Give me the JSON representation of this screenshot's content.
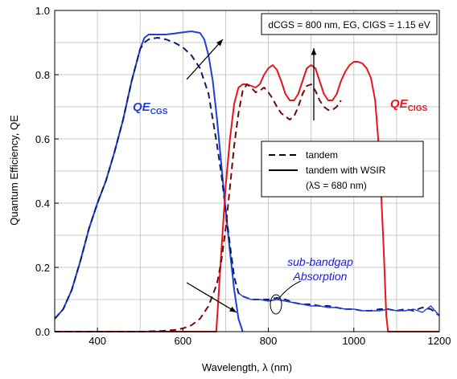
{
  "chart_data": {
    "type": "line",
    "xlabel": "Wavelength, λ (nm)",
    "ylabel": "Quantum Efficiency, QE",
    "xlim": [
      300,
      1200
    ],
    "ylim": [
      0,
      1.0
    ],
    "xticks": [
      400,
      600,
      800,
      1000,
      1200
    ],
    "yticks": [
      0.0,
      0.2,
      0.4,
      0.6,
      0.8,
      1.0
    ],
    "grid": true,
    "legend": {
      "placement": "center-right",
      "entries": [
        {
          "label": "tandem",
          "style": "dashed"
        },
        {
          "label": "tandem with WSIR",
          "style": "solid"
        },
        {
          "label": "(λS = 680 nm)",
          "style": "none"
        }
      ]
    },
    "info_box": "dCGS = 800 nm, EG, CIGS = 1.15 eV",
    "labels": {
      "qe_cgs_main": "QE",
      "qe_cgs_sub": "CGS",
      "qe_cigs_main": "QE",
      "qe_cigs_sub": "CIGS",
      "annotation_line1": "sub-bandgap",
      "annotation_line2": "Absorption"
    },
    "colors": {
      "cgs_solid": "#1f3fd6",
      "cgs_dashed": "#0a1f6e",
      "cigs_solid": "#e8141c",
      "cigs_dashed": "#6e0a0a"
    },
    "series": [
      {
        "name": "QE CGS tandem with WSIR",
        "style": "solid",
        "color": "cgs_solid",
        "x": [
          300,
          320,
          340,
          360,
          380,
          400,
          420,
          440,
          460,
          480,
          500,
          510,
          520,
          540,
          560,
          580,
          600,
          620,
          640,
          650,
          660,
          670,
          680,
          690,
          700,
          710,
          720,
          730,
          740
        ],
        "y": [
          0.04,
          0.07,
          0.13,
          0.22,
          0.32,
          0.4,
          0.47,
          0.56,
          0.66,
          0.78,
          0.88,
          0.915,
          0.925,
          0.925,
          0.925,
          0.928,
          0.932,
          0.935,
          0.93,
          0.91,
          0.86,
          0.78,
          0.66,
          0.52,
          0.38,
          0.25,
          0.13,
          0.04,
          0.0
        ]
      },
      {
        "name": "QE CGS tandem",
        "style": "dashed",
        "color": "cgs_dashed",
        "x": [
          300,
          320,
          340,
          360,
          380,
          400,
          420,
          440,
          460,
          480,
          500,
          510,
          520,
          540,
          560,
          580,
          600,
          620,
          640,
          660,
          670,
          680,
          690,
          700,
          710,
          720,
          730,
          740,
          760,
          780,
          800,
          820,
          840,
          860,
          880,
          900,
          920,
          940,
          960,
          980,
          1000,
          1020,
          1040,
          1060,
          1080,
          1100,
          1120,
          1140,
          1160,
          1180,
          1200
        ],
        "y": [
          0.04,
          0.07,
          0.13,
          0.22,
          0.32,
          0.4,
          0.47,
          0.56,
          0.66,
          0.78,
          0.88,
          0.9,
          0.91,
          0.915,
          0.91,
          0.9,
          0.885,
          0.86,
          0.82,
          0.74,
          0.66,
          0.58,
          0.49,
          0.38,
          0.27,
          0.17,
          0.12,
          0.11,
          0.1,
          0.1,
          0.1,
          0.105,
          0.1,
          0.09,
          0.085,
          0.085,
          0.08,
          0.08,
          0.075,
          0.07,
          0.07,
          0.065,
          0.065,
          0.07,
          0.07,
          0.065,
          0.07,
          0.065,
          0.075,
          0.07,
          0.05
        ]
      },
      {
        "name": "QE CGS sub-bandgap (WSIR)",
        "style": "solid",
        "color": "cgs_solid",
        "x": [
          730,
          740,
          760,
          780,
          800,
          820,
          840,
          860,
          880,
          900,
          920,
          940,
          960,
          980,
          1000,
          1020,
          1040,
          1060,
          1080,
          1100,
          1120,
          1140,
          1160,
          1180,
          1200
        ],
        "y": [
          0.12,
          0.11,
          0.1,
          0.1,
          0.095,
          0.1,
          0.095,
          0.09,
          0.085,
          0.08,
          0.08,
          0.075,
          0.075,
          0.07,
          0.07,
          0.065,
          0.065,
          0.065,
          0.07,
          0.065,
          0.065,
          0.07,
          0.06,
          0.08,
          0.05
        ]
      },
      {
        "name": "QE CIGS tandem with WSIR",
        "style": "solid",
        "color": "cigs_solid",
        "x": [
          300,
          670,
          678,
          682,
          690,
          700,
          710,
          720,
          730,
          740,
          750,
          760,
          770,
          780,
          790,
          800,
          810,
          820,
          830,
          840,
          850,
          860,
          870,
          880,
          890,
          900,
          910,
          920,
          930,
          940,
          950,
          960,
          970,
          980,
          990,
          1000,
          1010,
          1020,
          1030,
          1040,
          1050,
          1060,
          1070,
          1076,
          1080,
          1200
        ],
        "y": [
          0.0,
          0.0,
          0.0,
          0.08,
          0.25,
          0.45,
          0.6,
          0.71,
          0.76,
          0.77,
          0.77,
          0.765,
          0.76,
          0.77,
          0.8,
          0.82,
          0.83,
          0.815,
          0.78,
          0.74,
          0.72,
          0.72,
          0.74,
          0.78,
          0.82,
          0.83,
          0.82,
          0.78,
          0.74,
          0.72,
          0.72,
          0.74,
          0.78,
          0.81,
          0.83,
          0.84,
          0.84,
          0.835,
          0.82,
          0.79,
          0.72,
          0.55,
          0.25,
          0.05,
          0.0,
          0.0
        ]
      },
      {
        "name": "QE CIGS tandem",
        "style": "dashed",
        "color": "cigs_dashed",
        "x": [
          300,
          500,
          550,
          580,
          600,
          620,
          640,
          660,
          680,
          690,
          700,
          710,
          720,
          730,
          740,
          750,
          760,
          770,
          780,
          790,
          800,
          810,
          820,
          830,
          840,
          850,
          860,
          870,
          880,
          890,
          900,
          910,
          920,
          930,
          940,
          950,
          960,
          970
        ],
        "y": [
          0.0,
          0.0,
          0.002,
          0.005,
          0.01,
          0.02,
          0.04,
          0.08,
          0.15,
          0.22,
          0.32,
          0.45,
          0.58,
          0.68,
          0.75,
          0.77,
          0.76,
          0.745,
          0.75,
          0.76,
          0.745,
          0.725,
          0.7,
          0.68,
          0.67,
          0.66,
          0.67,
          0.7,
          0.74,
          0.765,
          0.77,
          0.75,
          0.72,
          0.7,
          0.69,
          0.69,
          0.7,
          0.72
        ]
      }
    ]
  }
}
